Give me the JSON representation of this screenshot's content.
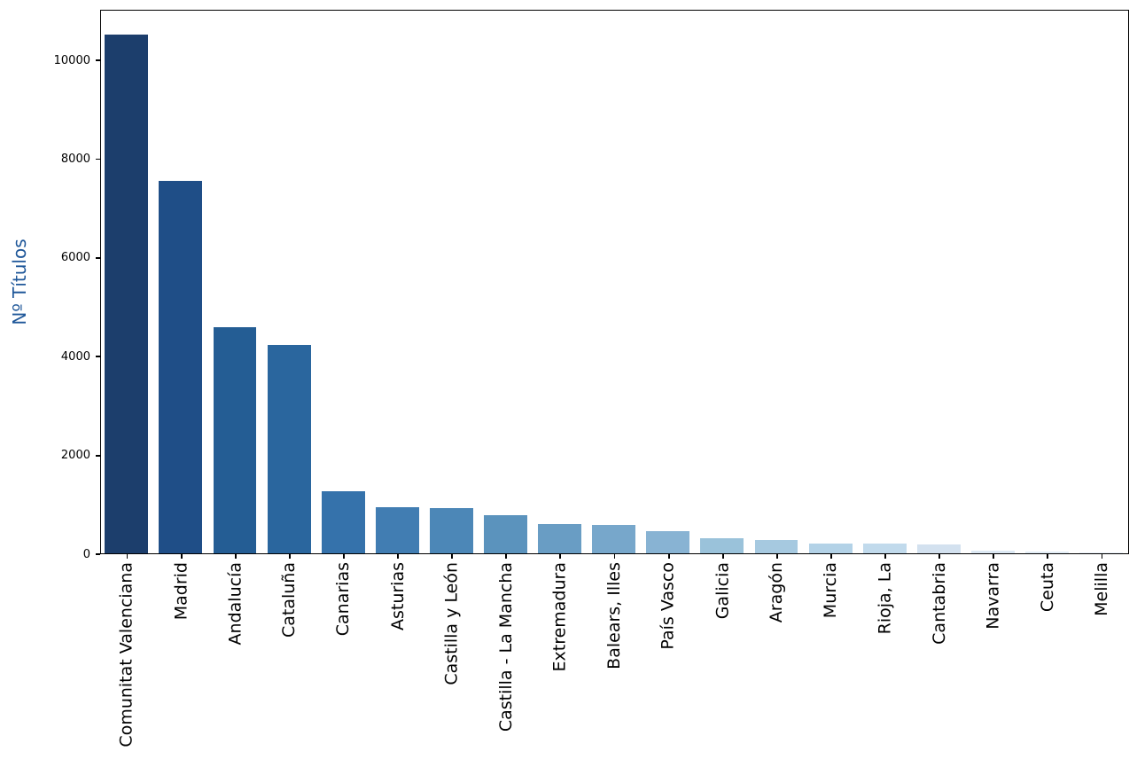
{
  "figure": {
    "background": "#ffffff",
    "spine_color": "#000000",
    "tick_color": "#000000"
  },
  "chart_data": {
    "type": "bar",
    "title": "",
    "xlabel": "",
    "ylabel": "Nº Títulos",
    "ylabel_color": "#1f5799",
    "categories": [
      "Comunitat Valenciana",
      "Madrid",
      "Andalucía",
      "Cataluña",
      "Canarias",
      "Asturias",
      "Castilla y León",
      "Castilla - La Mancha",
      "Extremadura",
      "Balears, Illes",
      "País Vasco",
      "Galicia",
      "Aragón",
      "Murcia",
      "Rioja, La",
      "Cantabria",
      "Navarra",
      "Ceuta",
      "Melilla"
    ],
    "values": [
      10500,
      7550,
      4580,
      4220,
      1260,
      940,
      920,
      780,
      600,
      580,
      450,
      300,
      275,
      195,
      190,
      185,
      55,
      35,
      12
    ],
    "bar_colors": [
      "#1c3e6c",
      "#1f4e87",
      "#245d94",
      "#2a669e",
      "#3572ab",
      "#417db2",
      "#4c87b7",
      "#5b93bd",
      "#699dc4",
      "#77a7cb",
      "#88b3d3",
      "#9ac2da",
      "#a6c9e0",
      "#b3d2e7",
      "#c1daec",
      "#d3e1ef",
      "#dce8f3",
      "#e3edf6",
      "#eaf1f9"
    ],
    "yticks": [
      0,
      2000,
      4000,
      6000,
      8000,
      10000
    ],
    "ylim": [
      0,
      11025
    ],
    "bar_width_fraction": 0.8,
    "grid": false,
    "legend": null,
    "x_tick_rotation_deg": 90
  }
}
